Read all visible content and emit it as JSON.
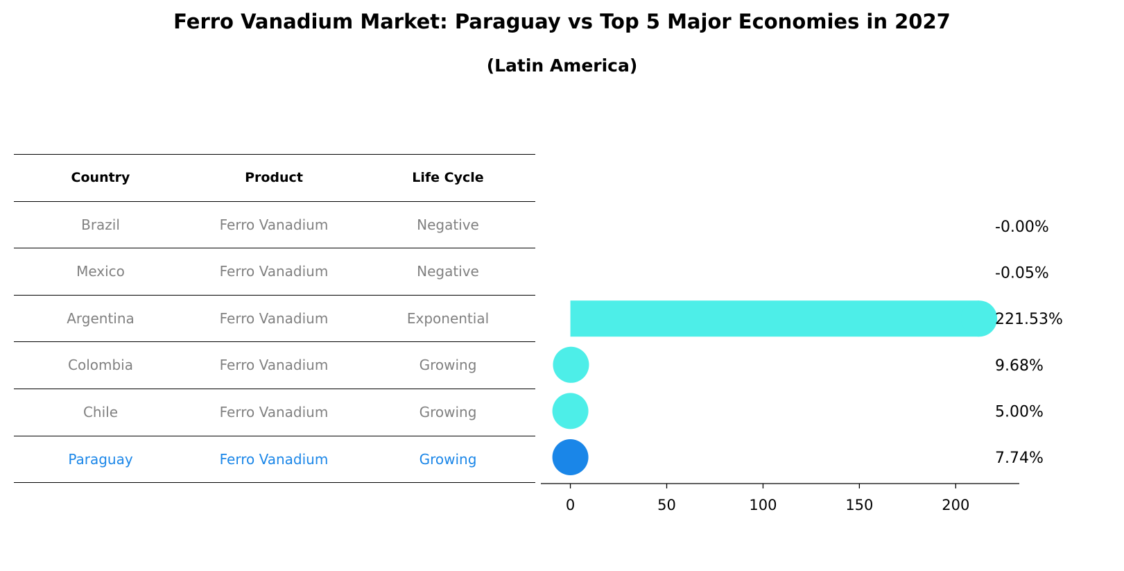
{
  "title": "Ferro Vanadium Market: Paraguay vs Top 5 Major Economies in 2027",
  "subtitle": "(Latin America)",
  "table": {
    "headers": [
      "Country",
      "Product",
      "Life Cycle"
    ],
    "rows": [
      [
        "Brazil",
        "Ferro Vanadium",
        "Negative"
      ],
      [
        "Mexico",
        "Ferro Vanadium",
        "Negative"
      ],
      [
        "Argentina",
        "Ferro Vanadium",
        "Exponential"
      ],
      [
        "Colombia",
        "Ferro Vanadium",
        "Growing"
      ],
      [
        "Chile",
        "Ferro Vanadium",
        "Growing"
      ],
      [
        "Paraguay",
        "Ferro Vanadium",
        "Growing"
      ]
    ]
  },
  "colors": {
    "bar": "#4deee8",
    "highlight": "#1a86e8",
    "text_muted": "#808080"
  },
  "chart_data": {
    "type": "bar",
    "orientation": "horizontal",
    "categories": [
      "Brazil",
      "Mexico",
      "Argentina",
      "Colombia",
      "Chile",
      "Paraguay"
    ],
    "values": [
      -0.0,
      -0.05,
      221.53,
      9.68,
      5.0,
      7.74
    ],
    "value_labels": [
      "-0.00%",
      "-0.05%",
      "221.53%",
      "9.68%",
      "5.00%",
      "7.74%"
    ],
    "highlight": "Paraguay",
    "xlim": [
      -11,
      233
    ],
    "xticks": [
      0,
      50,
      100,
      150,
      200
    ],
    "title": "",
    "xlabel": "",
    "ylabel": ""
  }
}
